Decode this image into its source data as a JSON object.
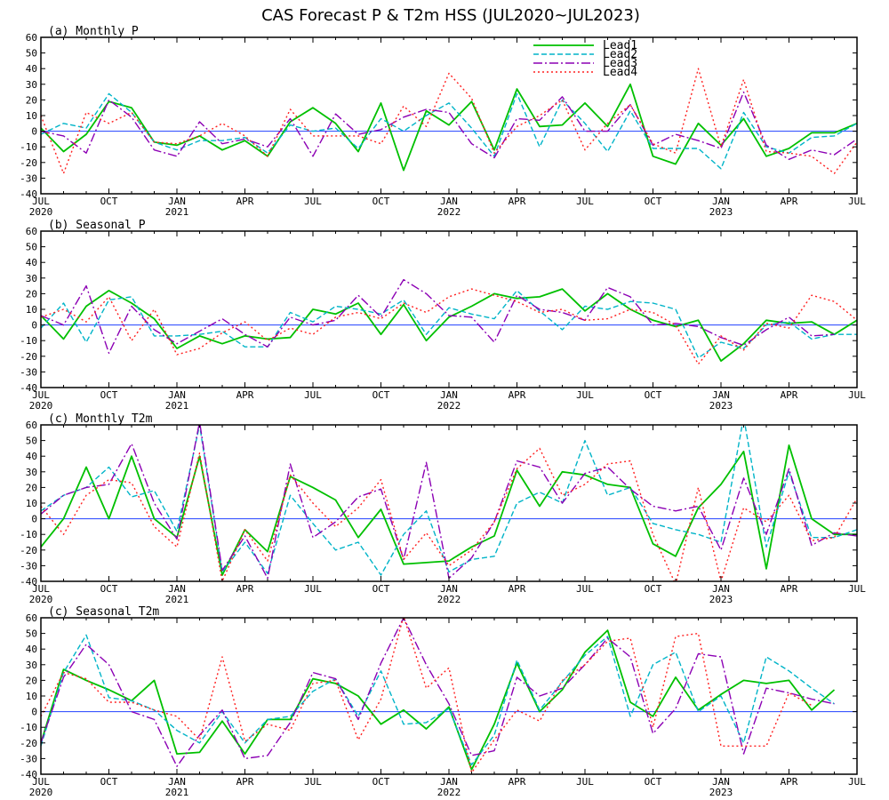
{
  "title": "CAS Forecast P & T2m HSS (JUL2020~JUL2023)",
  "legend": {
    "placement": "top-right of panel (a)",
    "entries": [
      {
        "label": "Lead1",
        "color": "#00c000",
        "dash": "solid"
      },
      {
        "label": "Lead2",
        "color": "#00b4c8",
        "dash": "dashed"
      },
      {
        "label": "Lead3",
        "color": "#8c00b4",
        "dash": "dash-dot"
      },
      {
        "label": "Lead4",
        "color": "#ff2020",
        "dash": "dotted"
      }
    ]
  },
  "colors": {
    "zero_line": "#2040ff",
    "frame": "#000000"
  },
  "x_axis": {
    "ticks": [
      {
        "i": 0,
        "label": "JUL",
        "year": "2020"
      },
      {
        "i": 3,
        "label": "OCT",
        "year": ""
      },
      {
        "i": 6,
        "label": "JAN",
        "year": "2021"
      },
      {
        "i": 9,
        "label": "APR",
        "year": ""
      },
      {
        "i": 12,
        "label": "JUL",
        "year": ""
      },
      {
        "i": 15,
        "label": "OCT",
        "year": ""
      },
      {
        "i": 18,
        "label": "JAN",
        "year": "2022"
      },
      {
        "i": 21,
        "label": "APR",
        "year": ""
      },
      {
        "i": 24,
        "label": "JUL",
        "year": ""
      },
      {
        "i": 27,
        "label": "OCT",
        "year": ""
      },
      {
        "i": 30,
        "label": "JAN",
        "year": "2023"
      },
      {
        "i": 33,
        "label": "APR",
        "year": ""
      },
      {
        "i": 36,
        "label": "JUL",
        "year": ""
      }
    ]
  },
  "chart_data": [
    {
      "type": "line",
      "title": "(a) Monthly P",
      "ylim": [
        -40,
        60
      ],
      "yticks": [
        -40,
        -30,
        -20,
        -10,
        0,
        10,
        20,
        30,
        40,
        50,
        60
      ],
      "x_range": [
        0,
        36
      ],
      "series": [
        {
          "name": "Lead1",
          "values": [
            2,
            -13,
            -2,
            19,
            15,
            -7,
            -9,
            -3,
            -12,
            -6,
            -16,
            6,
            15,
            5,
            -13,
            18,
            -25,
            13,
            4,
            19,
            -12,
            27,
            3,
            4,
            18,
            3,
            30,
            -16,
            -21,
            5,
            -9,
            8,
            -16,
            -11,
            -1,
            -1,
            5
          ]
        },
        {
          "name": "Lead2",
          "values": [
            -2,
            5,
            2,
            24,
            12,
            -7,
            -12,
            -6,
            -6,
            -4,
            -14,
            4,
            0,
            2,
            -11,
            8,
            0,
            10,
            18,
            2,
            -16,
            24,
            -10,
            20,
            5,
            -13,
            13,
            -11,
            -11,
            -11,
            -24,
            12,
            -10,
            -14,
            -4,
            -3,
            5
          ]
        },
        {
          "name": "Lead3",
          "values": [
            0,
            -3,
            -14,
            20,
            9,
            -12,
            -16,
            6,
            -8,
            -5,
            -10,
            8,
            -16,
            11,
            -2,
            1,
            9,
            14,
            12,
            -8,
            -17,
            8,
            7,
            22,
            0,
            0,
            17,
            -9,
            -2,
            -6,
            -11,
            25,
            -9,
            -18,
            -12,
            -15,
            -5
          ]
        },
        {
          "name": "Lead4",
          "values": [
            10,
            -27,
            12,
            5,
            12,
            -7,
            -8,
            -3,
            5,
            -3,
            -16,
            14,
            -3,
            -3,
            -3,
            -8,
            16,
            3,
            37,
            21,
            -14,
            3,
            10,
            20,
            -12,
            5,
            17,
            -8,
            -14,
            40,
            -10,
            33,
            -13,
            -14,
            -16,
            -27,
            -7
          ]
        }
      ]
    },
    {
      "type": "line",
      "title": "(b) Seasonal P",
      "ylim": [
        -40,
        60
      ],
      "yticks": [
        -40,
        -30,
        -20,
        -10,
        0,
        10,
        20,
        30,
        40,
        50,
        60
      ],
      "x_range": [
        0,
        36
      ],
      "series": [
        {
          "name": "Lead1",
          "values": [
            6,
            -9,
            12,
            22,
            14,
            4,
            -15,
            -7,
            -12,
            -7,
            -9,
            -8,
            10,
            7,
            14,
            -6,
            13,
            -10,
            5,
            12,
            20,
            17,
            18,
            23,
            9,
            20,
            10,
            3,
            -1,
            3,
            -23,
            -12,
            3,
            1,
            2,
            -6,
            3
          ]
        },
        {
          "name": "Lead2",
          "values": [
            -2,
            14,
            -11,
            16,
            18,
            -7,
            -7,
            -6,
            -4,
            -14,
            -14,
            8,
            2,
            12,
            10,
            7,
            16,
            -6,
            11,
            7,
            4,
            22,
            9,
            -3,
            12,
            10,
            15,
            14,
            10,
            -21,
            -11,
            -15,
            0,
            2,
            -9,
            -6,
            -6
          ]
        },
        {
          "name": "Lead3",
          "values": [
            6,
            0,
            25,
            -18,
            12,
            -3,
            -12,
            -4,
            4,
            -6,
            -14,
            5,
            0,
            3,
            19,
            5,
            29,
            20,
            6,
            5,
            -11,
            19,
            10,
            8,
            3,
            24,
            18,
            0,
            1,
            -1,
            -8,
            -13,
            -3,
            5,
            -7,
            -6,
            null
          ]
        },
        {
          "name": "Lead4",
          "values": [
            5,
            10,
            2,
            18,
            -10,
            10,
            -19,
            -15,
            -5,
            2,
            -10,
            -2,
            -6,
            5,
            8,
            4,
            14,
            8,
            18,
            23,
            19,
            15,
            8,
            10,
            3,
            4,
            10,
            8,
            0,
            -25,
            -7,
            -16,
            1,
            -2,
            19,
            15,
            3
          ]
        }
      ]
    },
    {
      "type": "line",
      "title": "(c) Monthly T2m",
      "ylim": [
        -40,
        60
      ],
      "yticks": [
        -40,
        -30,
        -20,
        -10,
        0,
        10,
        20,
        30,
        40,
        50,
        60
      ],
      "x_range": [
        0,
        36
      ],
      "series": [
        {
          "name": "Lead1",
          "values": [
            -18,
            0,
            33,
            0,
            40,
            0,
            -12,
            40,
            -36,
            -7,
            -21,
            27,
            20,
            12,
            -12,
            6,
            -29,
            -28,
            -27,
            -18,
            -11,
            31,
            8,
            30,
            28,
            22,
            20,
            -16,
            -24,
            7,
            22,
            43,
            -32,
            47,
            0,
            -10,
            -10
          ]
        },
        {
          "name": "Lead2",
          "values": [
            5,
            15,
            20,
            33,
            14,
            18,
            -8,
            60,
            -34,
            -15,
            -35,
            15,
            -3,
            -20,
            -15,
            -36,
            -10,
            5,
            -34,
            -26,
            -24,
            10,
            17,
            10,
            50,
            15,
            20,
            -3,
            -7,
            -10,
            -15,
            65,
            -18,
            30,
            -12,
            -12,
            -7
          ]
        },
        {
          "name": "Lead3",
          "values": [
            3,
            15,
            20,
            22,
            48,
            10,
            -13,
            62,
            -33,
            -11,
            -38,
            35,
            -12,
            -2,
            14,
            19,
            -26,
            36,
            -38,
            -25,
            -2,
            37,
            33,
            10,
            29,
            33,
            19,
            8,
            5,
            8,
            -20,
            26,
            -10,
            32,
            -17,
            -9,
            -11
          ]
        },
        {
          "name": "Lead4",
          "values": [
            8,
            -10,
            15,
            25,
            23,
            -5,
            -18,
            42,
            -40,
            -7,
            -27,
            28,
            10,
            -5,
            7,
            25,
            -26,
            -9,
            -30,
            -20,
            -2,
            32,
            45,
            15,
            22,
            35,
            37,
            -10,
            -42,
            20,
            -40,
            7,
            -2,
            15,
            -14,
            -12,
            13
          ]
        }
      ]
    },
    {
      "type": "line",
      "title": "(c) Seasonal T2m",
      "ylim": [
        -40,
        60
      ],
      "yticks": [
        -40,
        -30,
        -20,
        -10,
        0,
        10,
        20,
        30,
        40,
        50,
        60
      ],
      "x_range": [
        0,
        36
      ],
      "series": [
        {
          "name": "Lead1",
          "values": [
            -20,
            27,
            20,
            14,
            7,
            20,
            -27,
            -26,
            -6,
            -27,
            -5,
            -5,
            21,
            18,
            10,
            -8,
            1,
            -11,
            3,
            -37,
            -8,
            31,
            0,
            14,
            38,
            52,
            6,
            -3,
            22,
            1,
            11,
            20,
            18,
            20,
            1,
            14,
            null
          ]
        },
        {
          "name": "Lead2",
          "values": [
            -22,
            25,
            49,
            9,
            7,
            1,
            -12,
            -20,
            0,
            -20,
            -5,
            -3,
            13,
            21,
            -3,
            26,
            -8,
            -7,
            2,
            -34,
            -15,
            33,
            1,
            19,
            36,
            48,
            -3,
            30,
            38,
            0,
            10,
            -20,
            35,
            26,
            15,
            5,
            null
          ]
        },
        {
          "name": "Lead3",
          "values": [
            -20,
            22,
            43,
            30,
            0,
            -5,
            -35,
            -15,
            1,
            -30,
            -28,
            -7,
            25,
            21,
            -5,
            31,
            60,
            30,
            5,
            -28,
            -25,
            22,
            10,
            15,
            30,
            47,
            35,
            -14,
            2,
            37,
            35,
            -27,
            15,
            12,
            8,
            5,
            null
          ]
        },
        {
          "name": "Lead4",
          "values": [
            -3,
            25,
            21,
            6,
            6,
            1,
            -3,
            -18,
            35,
            -19,
            -8,
            -12,
            18,
            20,
            -18,
            8,
            61,
            15,
            28,
            -39,
            -18,
            1,
            -6,
            20,
            30,
            45,
            47,
            -10,
            48,
            50,
            -22,
            -22,
            -22,
            12,
            4,
            null,
            null
          ]
        }
      ]
    }
  ]
}
